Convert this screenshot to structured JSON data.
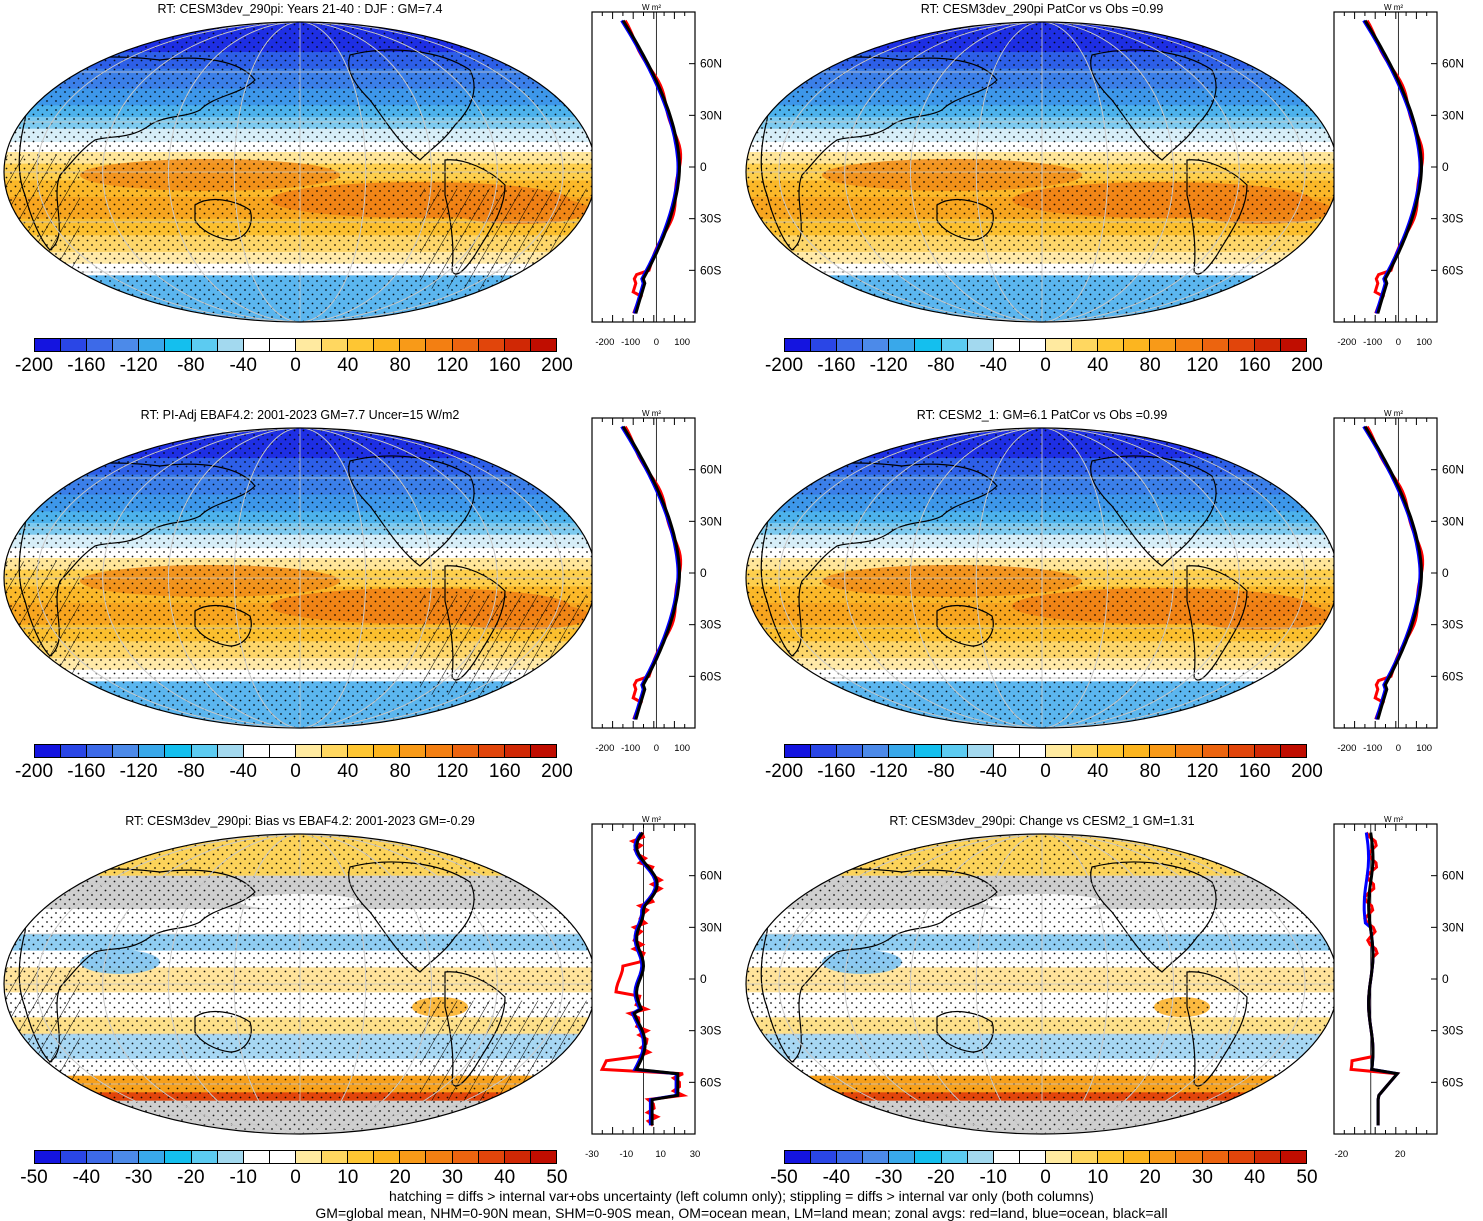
{
  "panels": [
    {
      "id": "p1",
      "title": "RT: CESM3dev_290pi: Years 21-40 : DJF : GM=7.4",
      "type": "mean",
      "cbar_labels": [
        "-200",
        "-160",
        "-120",
        "-80",
        "-40",
        "0",
        "40",
        "80",
        "120",
        "160",
        "200"
      ],
      "zonal_axis_label": "W m²",
      "zonal_ticks": [
        "-200",
        "-100",
        "0",
        "100"
      ],
      "lat_labels": [
        "60N",
        "30N",
        "0",
        "30S",
        "60S"
      ]
    },
    {
      "id": "p2",
      "title": "RT: CESM3dev_290pi PatCor vs Obs =0.99",
      "type": "mean",
      "cbar_labels": [
        "-200",
        "-160",
        "-120",
        "-80",
        "-40",
        "0",
        "40",
        "80",
        "120",
        "160",
        "200"
      ],
      "zonal_axis_label": "W m²",
      "zonal_ticks": [
        "-200",
        "-100",
        "0",
        "100"
      ],
      "lat_labels": [
        "60N",
        "30N",
        "0",
        "30S",
        "60S"
      ]
    },
    {
      "id": "p3",
      "title": "RT: PI-Adj EBAF4.2: 2001-2023 GM=7.7 Uncer=15 W/m2",
      "type": "mean",
      "cbar_labels": [
        "-200",
        "-160",
        "-120",
        "-80",
        "-40",
        "0",
        "40",
        "80",
        "120",
        "160",
        "200"
      ],
      "zonal_axis_label": "W m²",
      "zonal_ticks": [
        "-200",
        "-100",
        "0",
        "100"
      ],
      "lat_labels": [
        "60N",
        "30N",
        "0",
        "30S",
        "60S"
      ]
    },
    {
      "id": "p4",
      "title": "RT: CESM2_1: GM=6.1 PatCor vs Obs =0.99",
      "type": "mean",
      "cbar_labels": [
        "-200",
        "-160",
        "-120",
        "-80",
        "-40",
        "0",
        "40",
        "80",
        "120",
        "160",
        "200"
      ],
      "zonal_axis_label": "W m²",
      "zonal_ticks": [
        "-200",
        "-100",
        "0",
        "100"
      ],
      "lat_labels": [
        "60N",
        "30N",
        "0",
        "30S",
        "60S"
      ]
    },
    {
      "id": "p5",
      "title": "RT: CESM3dev_290pi: Bias vs EBAF4.2: 2001-2023 GM=-0.29",
      "type": "diff",
      "cbar_labels": [
        "-50",
        "-40",
        "-30",
        "-20",
        "-10",
        "0",
        "10",
        "20",
        "30",
        "40",
        "50"
      ],
      "zonal_axis_label": "W m²",
      "zonal_ticks": [
        "-30",
        "-10",
        "10",
        "30"
      ],
      "lat_labels": [
        "60N",
        "30N",
        "0",
        "30S",
        "60S"
      ]
    },
    {
      "id": "p6",
      "title": "RT: CESM3dev_290pi: Change vs CESM2_1 GM=1.31",
      "type": "diff",
      "cbar_labels": [
        "-50",
        "-40",
        "-30",
        "-20",
        "-10",
        "0",
        "10",
        "20",
        "30",
        "40",
        "50"
      ],
      "zonal_axis_label": "W m²",
      "zonal_ticks": [
        "-20",
        "20"
      ],
      "lat_labels": [
        "60N",
        "30N",
        "0",
        "30S",
        "60S"
      ]
    }
  ],
  "palette": [
    "#1414e0",
    "#2a46e6",
    "#3d6ae8",
    "#4c8ae9",
    "#39a8ea",
    "#14bfee",
    "#5ccbf1",
    "#a3d9ef",
    "#ffffff",
    "#ffffff",
    "#ffeaa0",
    "#ffd760",
    "#fec633",
    "#fcb51f",
    "#f89a18",
    "#f37f12",
    "#ec640f",
    "#e1450b",
    "#d02805",
    "#c00d00"
  ],
  "zonal_colors": {
    "land": "#ff0000",
    "ocean": "#0000ff",
    "all": "#000000"
  },
  "footnote": {
    "line1": "hatching = diffs > internal var+obs uncertainty (left column only); stippling = diffs > internal var only (both columns)",
    "line2": "GM=global mean, NHM=0-90N mean, SHM=0-90S mean, OM=ocean mean, LM=land mean; zonal avgs: red=land, blue=ocean, black=all"
  }
}
